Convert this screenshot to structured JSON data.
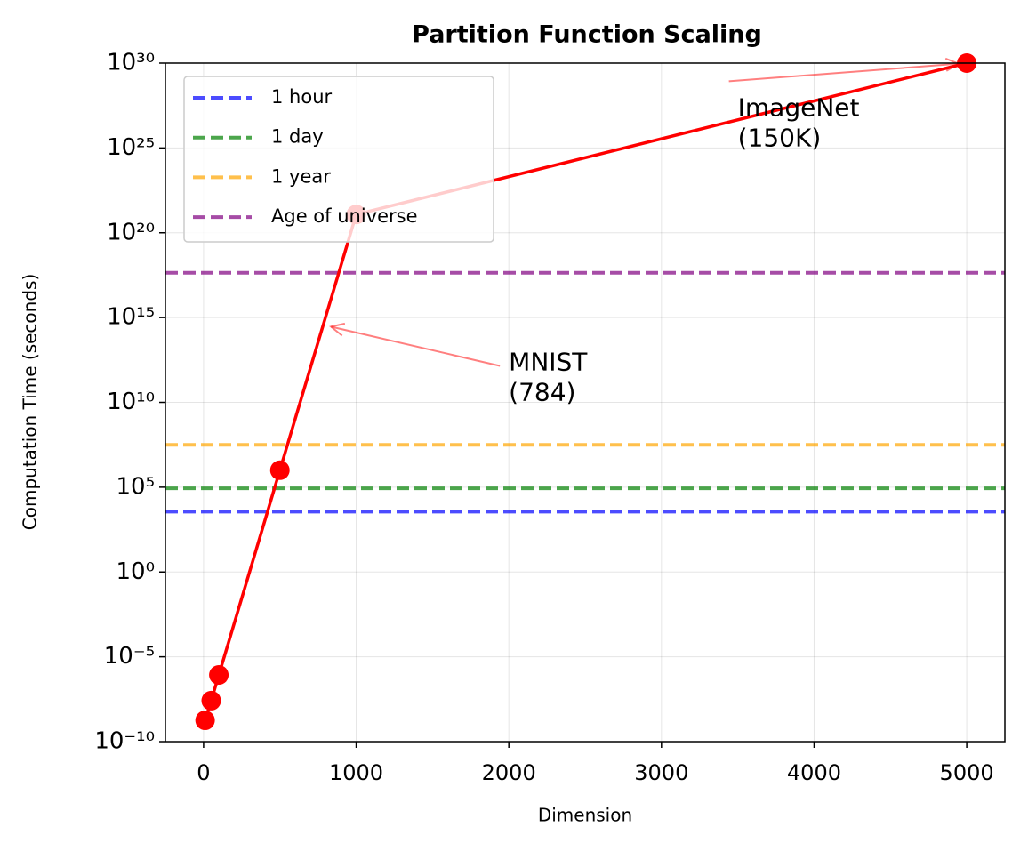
{
  "chart_data": {
    "type": "line",
    "title": "Partition Function Scaling",
    "x_label": "Dimension",
    "y_label": "Computation Time (seconds)",
    "y_scale": "log",
    "grid": true,
    "legend_position": "upper left",
    "xlim": [
      -250,
      5250
    ],
    "ylim": [
      1e-10,
      1e+30
    ],
    "xticks": [
      0,
      1000,
      2000,
      3000,
      4000,
      5000
    ],
    "yticks": [
      {
        "value": 1e-10,
        "label": "10⁻¹⁰"
      },
      {
        "value": 1e-05,
        "label": "10⁻⁵"
      },
      {
        "value": 1,
        "label": "10⁰"
      },
      {
        "value": 100000.0,
        "label": "10⁵"
      },
      {
        "value": 10000000000.0,
        "label": "10¹⁰"
      },
      {
        "value": 1000000000000000.0,
        "label": "10¹⁵"
      },
      {
        "value": 1e+20,
        "label": "10²⁰"
      },
      {
        "value": 1e+25,
        "label": "10²⁵"
      },
      {
        "value": 1e+30,
        "label": "10³⁰"
      }
    ],
    "series": [
      {
        "color": "#ff0000",
        "x": [
          10,
          50,
          100,
          500,
          1000,
          5000
        ],
        "values": [
          1.8e-09,
          2.6e-08,
          8.5e-07,
          1000000.0,
          1.2e+21,
          1e+30
        ]
      }
    ],
    "reference_lines": [
      {
        "name": "1 hour",
        "color": "#0000ff",
        "value": 3600
      },
      {
        "name": "1 day",
        "color": "#008000",
        "value": 86400
      },
      {
        "name": "1 year",
        "color": "#ffa500",
        "value": 31536000
      },
      {
        "name": "Age of universe",
        "color": "#800080",
        "value": 4.35e+17
      }
    ],
    "annotations": [
      {
        "lines": [
          "MNIST",
          "(784)"
        ],
        "x": 784,
        "y": 370000000000000.0,
        "text_x": 2000,
        "text_y": 10000000000.0
      },
      {
        "lines": [
          "ImageNet",
          "(150K)"
        ],
        "x": 5000,
        "y": 1e+30,
        "text_x": 3500,
        "text_y": 1e+25
      }
    ]
  }
}
